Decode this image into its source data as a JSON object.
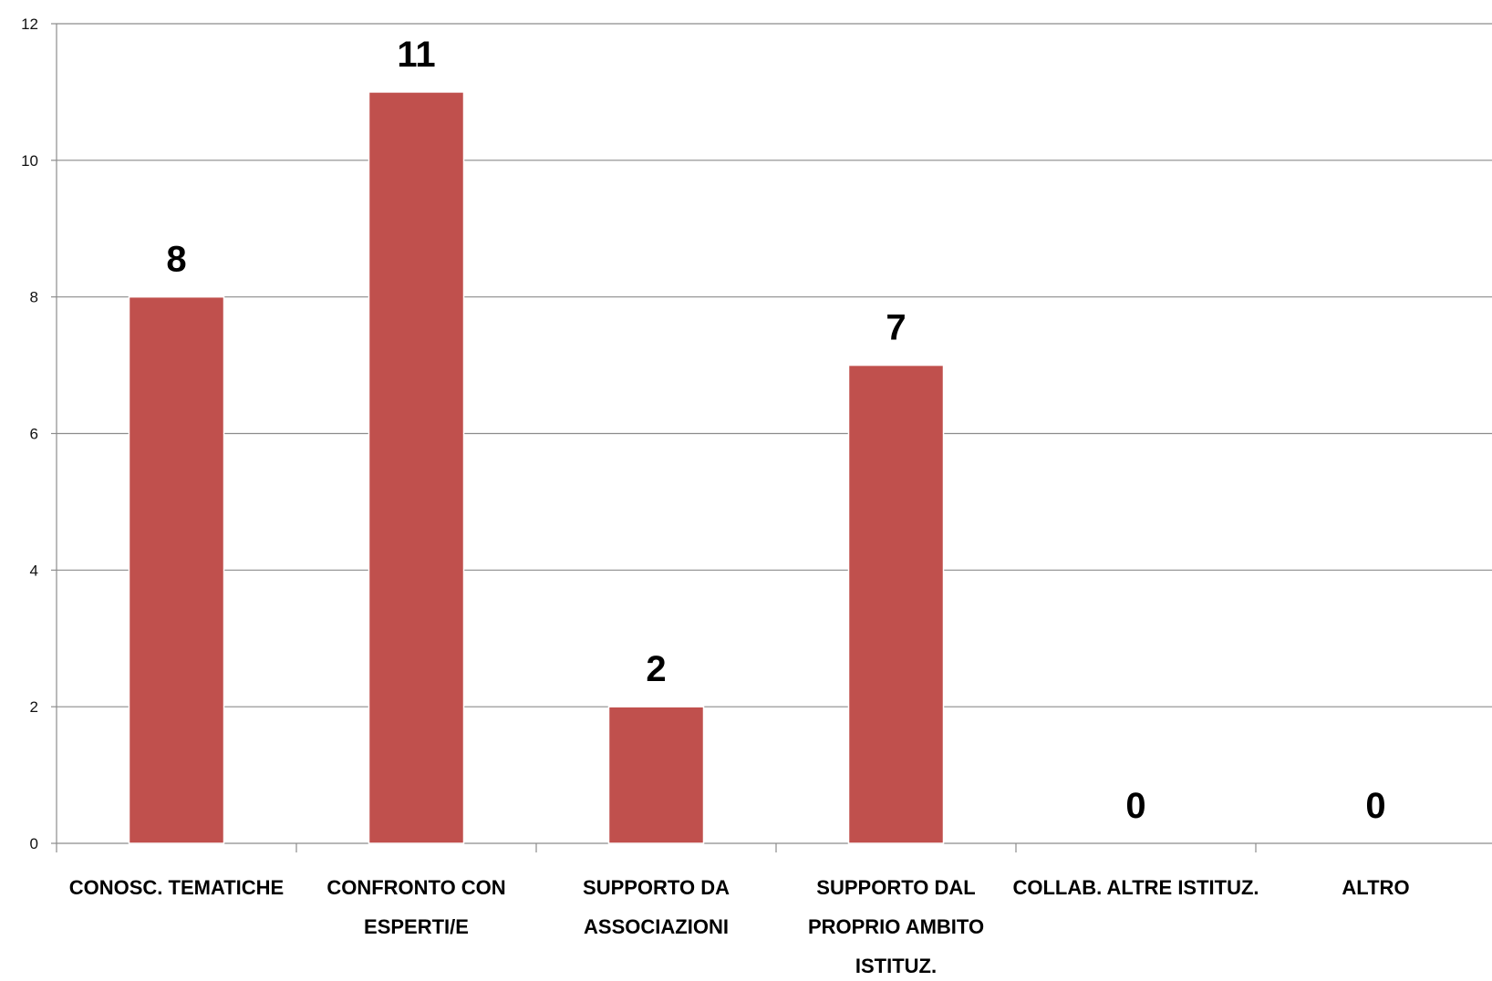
{
  "chart_data": {
    "type": "bar",
    "categories": [
      [
        "CONOSC. TEMATICHE"
      ],
      [
        "CONFRONTO CON",
        "ESPERTI/E"
      ],
      [
        "SUPPORTO DA",
        "ASSOCIAZIONI"
      ],
      [
        "SUPPORTO DAL",
        "PROPRIO AMBITO",
        "ISTITUZ."
      ],
      [
        "COLLAB. ALTRE ISTITUZ."
      ],
      [
        "ALTRO"
      ]
    ],
    "values": [
      8,
      11,
      2,
      7,
      0,
      0
    ],
    "data_labels": [
      "8",
      "11",
      "2",
      "7",
      "0",
      "0"
    ],
    "ylim": [
      0,
      12
    ],
    "yticks": [
      0,
      2,
      4,
      6,
      8,
      10,
      12
    ],
    "grid": true,
    "legend": "none",
    "colors": {
      "bar": "#C0504D",
      "grid": "#8c8c8c",
      "axis": "#8c8c8c"
    }
  }
}
